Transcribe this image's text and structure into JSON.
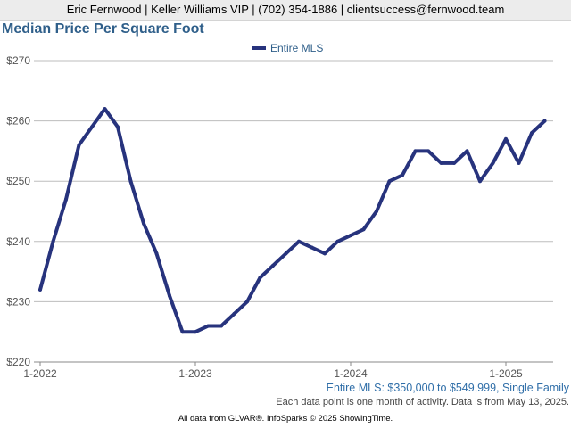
{
  "header": {
    "contact": "Eric Fernwood | Keller Williams VIP | (702) 354-1886 | clientsuccess@fernwood.team"
  },
  "chart_data": {
    "type": "line",
    "title": "Median Price Per Square Foot",
    "subtitle": "Entire MLS: $350,000 to $549,999, Single Family",
    "note": "Each data point is one month of activity. Data is from May 13, 2025.",
    "footer": "All data from GLVAR®. InfoSparks © 2025 ShowingTime.",
    "xlabel": "",
    "ylabel": "",
    "ylim": [
      220,
      270
    ],
    "yticks": [
      220,
      230,
      240,
      250,
      260,
      270
    ],
    "ytick_labels": [
      "$220",
      "$230",
      "$240",
      "$250",
      "$260",
      "$270"
    ],
    "xtick_labels": [
      "1-2022",
      "1-2023",
      "1-2024",
      "1-2025"
    ],
    "grid": true,
    "legend": "top-center",
    "color": "#27337d",
    "series": [
      {
        "name": "Entire MLS",
        "x": [
          "2022-01",
          "2022-02",
          "2022-03",
          "2022-04",
          "2022-05",
          "2022-06",
          "2022-07",
          "2022-08",
          "2022-09",
          "2022-10",
          "2022-11",
          "2022-12",
          "2023-01",
          "2023-02",
          "2023-03",
          "2023-04",
          "2023-05",
          "2023-06",
          "2023-07",
          "2023-08",
          "2023-09",
          "2023-10",
          "2023-11",
          "2023-12",
          "2024-01",
          "2024-02",
          "2024-03",
          "2024-04",
          "2024-05",
          "2024-06",
          "2024-07",
          "2024-08",
          "2024-09",
          "2024-10",
          "2024-11",
          "2024-12",
          "2025-01",
          "2025-02",
          "2025-03",
          "2025-04"
        ],
        "values": [
          232,
          240,
          247,
          256,
          259,
          262,
          259,
          250,
          243,
          238,
          231,
          225,
          225,
          226,
          226,
          228,
          230,
          234,
          236,
          238,
          240,
          239,
          238,
          240,
          241,
          242,
          245,
          250,
          251,
          255,
          255,
          253,
          253,
          255,
          250,
          253,
          257,
          253,
          258,
          260
        ]
      }
    ]
  }
}
